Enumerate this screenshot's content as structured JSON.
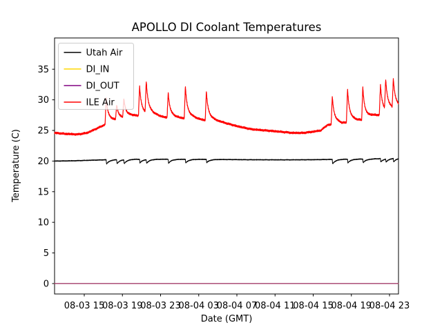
{
  "chart_data": {
    "type": "line",
    "title": "APOLLO DI Coolant Temperatures",
    "xlabel": "Date (GMT)",
    "ylabel": "Temperature (C)",
    "x_axis": {
      "unit_note": "hours since 08-03 00:00 GMT",
      "xlim": [
        11.887,
        47.94
      ],
      "ticks": [
        {
          "t": 15,
          "label": "08-03 15"
        },
        {
          "t": 19,
          "label": "08-03 19"
        },
        {
          "t": 23,
          "label": "08-03 23"
        },
        {
          "t": 27,
          "label": "08-04 03"
        },
        {
          "t": 31,
          "label": "08-04 07"
        },
        {
          "t": 35,
          "label": "08-04 11"
        },
        {
          "t": 39,
          "label": "08-04 15"
        },
        {
          "t": 43,
          "label": "08-04 19"
        },
        {
          "t": 47,
          "label": "08-04 23"
        }
      ]
    },
    "y_axis": {
      "ylim": [
        -1.7,
        40.1
      ],
      "ticks": [
        0,
        5,
        10,
        15,
        20,
        25,
        30,
        35
      ]
    },
    "grid": false,
    "legend": {
      "position": "upper-left",
      "frame_opacity": 0.8,
      "entries": [
        {
          "label": "Utah Air",
          "color": "#000000"
        },
        {
          "label": "DI_IN",
          "color": "#ffd700"
        },
        {
          "label": "DI_OUT",
          "color": "#800080"
        },
        {
          "label": "ILE Air",
          "color": "#ff0000"
        }
      ]
    },
    "series": [
      {
        "name": "Utah Air",
        "color": "#000000",
        "width": 1.0,
        "noise_amp": 0.04,
        "base_points": [
          [
            11.887,
            20.0
          ],
          [
            14,
            20.05
          ],
          [
            16,
            20.15
          ],
          [
            17,
            20.2
          ],
          [
            20,
            20.3
          ],
          [
            24,
            20.3
          ],
          [
            28,
            20.28
          ],
          [
            32,
            20.22
          ],
          [
            36,
            20.2
          ],
          [
            39,
            20.22
          ],
          [
            42,
            20.3
          ],
          [
            45,
            20.35
          ],
          [
            47,
            20.45
          ],
          [
            47.94,
            20.5
          ]
        ],
        "dips": [
          {
            "t": 17.3,
            "depth": 0.7
          },
          {
            "t": 18.4,
            "depth": 0.65
          },
          {
            "t": 19.15,
            "depth": 0.65
          },
          {
            "t": 20.8,
            "depth": 0.6
          },
          {
            "t": 21.5,
            "depth": 0.6
          },
          {
            "t": 23.8,
            "depth": 0.65
          },
          {
            "t": 25.6,
            "depth": 0.6
          },
          {
            "t": 27.8,
            "depth": 0.55
          },
          {
            "t": 41.0,
            "depth": 0.75
          },
          {
            "t": 42.6,
            "depth": 0.6
          },
          {
            "t": 44.2,
            "depth": 0.6
          },
          {
            "t": 46.05,
            "depth": 0.55
          },
          {
            "t": 46.6,
            "depth": 0.5
          },
          {
            "t": 47.4,
            "depth": 0.55
          }
        ]
      },
      {
        "name": "DI_IN",
        "color": "#ffd700",
        "width": 1.2,
        "noise_amp": 0,
        "base_points": [
          [
            11.887,
            0
          ],
          [
            47.94,
            0
          ]
        ]
      },
      {
        "name": "DI_OUT",
        "color": "#800080",
        "width": 1.0,
        "noise_amp": 0,
        "base_points": [
          [
            11.887,
            0
          ],
          [
            47.94,
            0
          ]
        ]
      },
      {
        "name": "ILE Air",
        "color": "#ff0000",
        "width": 1.2,
        "noise_amp": 0.1,
        "base_points": [
          [
            11.887,
            24.6
          ],
          [
            13,
            24.45
          ],
          [
            14.3,
            24.35
          ],
          [
            15.3,
            24.6
          ],
          [
            16.3,
            25.3
          ],
          [
            17.1,
            25.9
          ],
          [
            17.6,
            26.3
          ],
          [
            18.2,
            26.4
          ],
          [
            19,
            26.7
          ],
          [
            19.9,
            27.1
          ],
          [
            21,
            27.3
          ],
          [
            22.5,
            27.1
          ],
          [
            24,
            26.9
          ],
          [
            26,
            26.8
          ],
          [
            28,
            26.5
          ],
          [
            29.5,
            26.2
          ],
          [
            31,
            25.7
          ],
          [
            32.5,
            25.2
          ],
          [
            34,
            25.0
          ],
          [
            35.5,
            24.8
          ],
          [
            36.8,
            24.6
          ],
          [
            38,
            24.6
          ],
          [
            39,
            24.8
          ],
          [
            39.8,
            25.0
          ],
          [
            40.5,
            25.9
          ],
          [
            41.3,
            26.0
          ],
          [
            42,
            25.9
          ],
          [
            42.9,
            26.2
          ],
          [
            43.6,
            26.3
          ],
          [
            44.5,
            26.6
          ],
          [
            45.3,
            27.1
          ],
          [
            46.2,
            27.5
          ],
          [
            46.9,
            27.8
          ],
          [
            47.5,
            28.0
          ],
          [
            47.94,
            28.2
          ]
        ],
        "spikes": [
          {
            "t": 17.3,
            "peak": 30.4
          },
          {
            "t": 18.4,
            "peak": 28.9
          },
          {
            "t": 19.15,
            "peak": 29.8
          },
          {
            "t": 20.8,
            "peak": 32.1
          },
          {
            "t": 21.5,
            "peak": 32.4
          },
          {
            "t": 23.8,
            "peak": 31.1
          },
          {
            "t": 25.6,
            "peak": 32.1
          },
          {
            "t": 27.8,
            "peak": 31.3
          },
          {
            "t": 41.0,
            "peak": 30.6
          },
          {
            "t": 42.6,
            "peak": 31.6
          },
          {
            "t": 44.2,
            "peak": 31.9
          },
          {
            "t": 46.05,
            "peak": 32.3
          },
          {
            "t": 46.6,
            "peak": 32.5
          },
          {
            "t": 47.4,
            "peak": 32.7
          }
        ]
      }
    ]
  }
}
